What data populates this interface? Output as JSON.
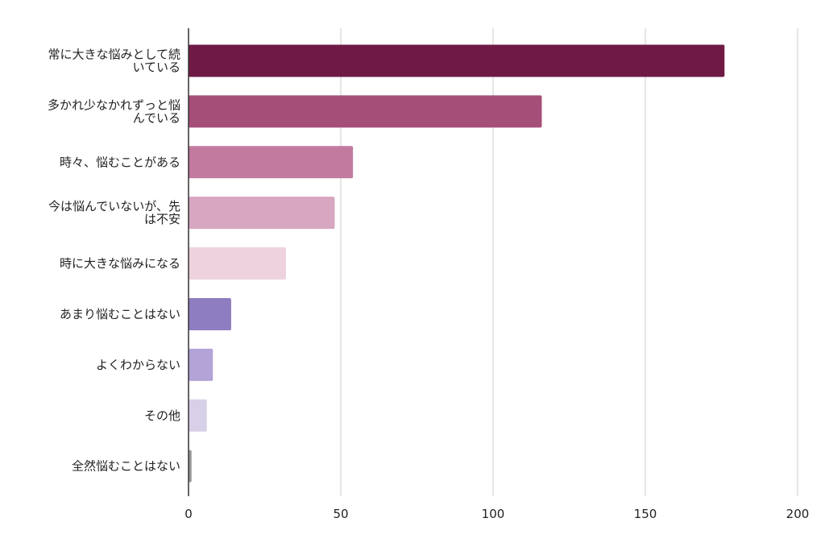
{
  "chart_data": {
    "type": "bar",
    "orientation": "horizontal",
    "categories": [
      "常に大きな悩みとして続いている",
      "多かれ少なかれずっと悩んでいる",
      "時々、悩むことがある",
      "今は悩んでいないが、先は不安",
      "時に大きな悩みになる",
      "あまり悩むことはない",
      "よくわからない",
      "その他",
      "全然悩むことはない"
    ],
    "category_lines": [
      [
        "常に大きな悩みとして続",
        "いている"
      ],
      [
        "多かれ少なかれずっと悩",
        "んでいる"
      ],
      [
        "時々、悩むことがある"
      ],
      [
        "今は悩んでいないが、先",
        "は不安"
      ],
      [
        "時に大きな悩みになる"
      ],
      [
        "あまり悩むことはない"
      ],
      [
        "よくわからない"
      ],
      [
        "その他"
      ],
      [
        "全然悩むことはない"
      ]
    ],
    "values": [
      176,
      116,
      54,
      48,
      32,
      14,
      8,
      6,
      1
    ],
    "colors": [
      "#6e1a45",
      "#a54e78",
      "#c27a9f",
      "#d7a6c0",
      "#eed2de",
      "#8f7dc1",
      "#b3a3d6",
      "#d8cfe8",
      "#999999"
    ],
    "xlim": [
      0,
      200
    ],
    "xticks": [
      0,
      50,
      100,
      150,
      200
    ],
    "grid": true,
    "legend": "none"
  }
}
